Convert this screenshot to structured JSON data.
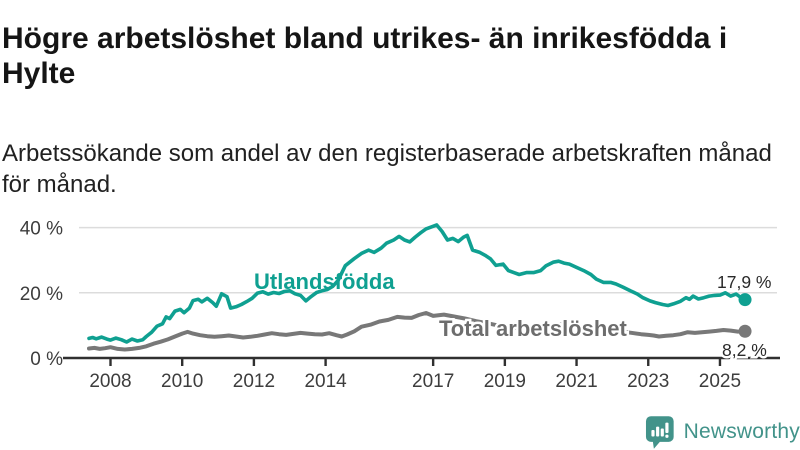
{
  "header": {
    "title": "Högre arbetslöshet bland utrikes- än inrikesfödda i Hylte",
    "subtitle": "Arbetssökande som andel av den registerbaserade arbetskraften månad för månad."
  },
  "chart_data": {
    "type": "line",
    "unit": "%",
    "grid": "horizontal gridlines at 20 and 40",
    "legend_position": "inline labels on lines",
    "xlim": [
      2007.4,
      2025.75
    ],
    "ylim": [
      0,
      44
    ],
    "x_tick_labels": [
      "2008",
      "2010",
      "2012",
      "2014",
      "2017",
      "2019",
      "2021",
      "2023",
      "2025"
    ],
    "x_tick_values": [
      2008,
      2010,
      2012,
      2014,
      2017,
      2019,
      2021,
      2023,
      2025
    ],
    "y_tick_labels": [
      "0 %",
      "20 %",
      "40 %"
    ],
    "y_tick_values": [
      0,
      20,
      40
    ],
    "gridline_values": [
      20,
      40
    ],
    "series": [
      {
        "name": "Utlandsfödda",
        "color": "#0fa091",
        "end_label": "17,9 %",
        "end_value": 17.9,
        "points": [
          [
            2007.4,
            6.0
          ],
          [
            2007.5,
            6.3
          ],
          [
            2007.6,
            5.9
          ],
          [
            2007.75,
            6.4
          ],
          [
            2007.9,
            5.8
          ],
          [
            2008.0,
            5.5
          ],
          [
            2008.15,
            6.1
          ],
          [
            2008.3,
            5.6
          ],
          [
            2008.45,
            4.9
          ],
          [
            2008.6,
            5.8
          ],
          [
            2008.75,
            5.2
          ],
          [
            2008.9,
            5.6
          ],
          [
            2009.0,
            6.6
          ],
          [
            2009.15,
            7.9
          ],
          [
            2009.3,
            9.8
          ],
          [
            2009.45,
            10.5
          ],
          [
            2009.55,
            12.6
          ],
          [
            2009.65,
            12.1
          ],
          [
            2009.8,
            14.4
          ],
          [
            2009.95,
            14.9
          ],
          [
            2010.05,
            13.9
          ],
          [
            2010.2,
            15.3
          ],
          [
            2010.3,
            17.6
          ],
          [
            2010.45,
            18.0
          ],
          [
            2010.55,
            17.2
          ],
          [
            2010.7,
            18.3
          ],
          [
            2010.85,
            17.0
          ],
          [
            2010.95,
            15.9
          ],
          [
            2011.1,
            19.7
          ],
          [
            2011.25,
            18.8
          ],
          [
            2011.35,
            15.3
          ],
          [
            2011.5,
            15.7
          ],
          [
            2011.65,
            16.4
          ],
          [
            2011.8,
            17.3
          ],
          [
            2011.95,
            18.3
          ],
          [
            2012.1,
            19.9
          ],
          [
            2012.25,
            20.3
          ],
          [
            2012.4,
            19.6
          ],
          [
            2012.55,
            20.1
          ],
          [
            2012.7,
            19.8
          ],
          [
            2012.85,
            20.4
          ],
          [
            2013.0,
            20.6
          ],
          [
            2013.15,
            19.7
          ],
          [
            2013.3,
            19.2
          ],
          [
            2013.45,
            17.5
          ],
          [
            2013.6,
            18.9
          ],
          [
            2013.75,
            20.1
          ],
          [
            2013.9,
            20.6
          ],
          [
            2014.05,
            21.0
          ],
          [
            2014.2,
            22.0
          ],
          [
            2014.35,
            23.8
          ],
          [
            2014.55,
            28.3
          ],
          [
            2014.8,
            30.5
          ],
          [
            2015.0,
            32.1
          ],
          [
            2015.2,
            33.1
          ],
          [
            2015.35,
            32.4
          ],
          [
            2015.55,
            33.7
          ],
          [
            2015.7,
            35.2
          ],
          [
            2015.9,
            36.2
          ],
          [
            2016.05,
            37.3
          ],
          [
            2016.2,
            36.2
          ],
          [
            2016.35,
            35.6
          ],
          [
            2016.5,
            37.1
          ],
          [
            2016.65,
            38.4
          ],
          [
            2016.8,
            39.6
          ],
          [
            2016.95,
            40.2
          ],
          [
            2017.1,
            40.8
          ],
          [
            2017.25,
            38.8
          ],
          [
            2017.4,
            36.2
          ],
          [
            2017.55,
            36.7
          ],
          [
            2017.7,
            35.7
          ],
          [
            2017.85,
            37.1
          ],
          [
            2017.95,
            37.6
          ],
          [
            2018.1,
            33.1
          ],
          [
            2018.3,
            32.4
          ],
          [
            2018.45,
            31.5
          ],
          [
            2018.6,
            30.4
          ],
          [
            2018.75,
            28.4
          ],
          [
            2018.95,
            28.8
          ],
          [
            2019.1,
            26.8
          ],
          [
            2019.25,
            26.2
          ],
          [
            2019.4,
            25.6
          ],
          [
            2019.6,
            26.2
          ],
          [
            2019.8,
            26.2
          ],
          [
            2020.0,
            26.8
          ],
          [
            2020.15,
            28.3
          ],
          [
            2020.35,
            29.4
          ],
          [
            2020.5,
            29.7
          ],
          [
            2020.65,
            29.1
          ],
          [
            2020.8,
            28.8
          ],
          [
            2021.0,
            27.8
          ],
          [
            2021.2,
            26.8
          ],
          [
            2021.4,
            25.6
          ],
          [
            2021.55,
            24.2
          ],
          [
            2021.75,
            23.2
          ],
          [
            2021.95,
            23.2
          ],
          [
            2022.1,
            22.7
          ],
          [
            2022.3,
            21.7
          ],
          [
            2022.5,
            20.6
          ],
          [
            2022.7,
            19.6
          ],
          [
            2022.85,
            18.5
          ],
          [
            2023.05,
            17.5
          ],
          [
            2023.2,
            17.0
          ],
          [
            2023.4,
            16.4
          ],
          [
            2023.55,
            16.1
          ],
          [
            2023.7,
            16.6
          ],
          [
            2023.9,
            17.4
          ],
          [
            2024.05,
            18.5
          ],
          [
            2024.15,
            18.0
          ],
          [
            2024.25,
            19.0
          ],
          [
            2024.4,
            18.1
          ],
          [
            2024.55,
            18.5
          ],
          [
            2024.7,
            19.0
          ],
          [
            2024.85,
            19.2
          ],
          [
            2025.0,
            19.3
          ],
          [
            2025.15,
            20.0
          ],
          [
            2025.3,
            19.0
          ],
          [
            2025.45,
            19.6
          ],
          [
            2025.55,
            18.8
          ],
          [
            2025.7,
            17.9
          ]
        ]
      },
      {
        "name": "Total arbetslöshet",
        "color": "#787878",
        "end_label": "8,2 %",
        "end_value": 8.2,
        "points": [
          [
            2007.4,
            2.9
          ],
          [
            2007.55,
            3.1
          ],
          [
            2007.7,
            2.8
          ],
          [
            2007.85,
            3.0
          ],
          [
            2008.0,
            3.3
          ],
          [
            2008.2,
            2.8
          ],
          [
            2008.4,
            2.6
          ],
          [
            2008.6,
            2.8
          ],
          [
            2008.8,
            3.1
          ],
          [
            2009.0,
            3.6
          ],
          [
            2009.2,
            4.4
          ],
          [
            2009.4,
            5.0
          ],
          [
            2009.6,
            5.7
          ],
          [
            2009.8,
            6.6
          ],
          [
            2010.0,
            7.5
          ],
          [
            2010.15,
            8.0
          ],
          [
            2010.3,
            7.5
          ],
          [
            2010.5,
            7.0
          ],
          [
            2010.7,
            6.7
          ],
          [
            2010.9,
            6.5
          ],
          [
            2011.1,
            6.7
          ],
          [
            2011.3,
            6.9
          ],
          [
            2011.5,
            6.6
          ],
          [
            2011.7,
            6.3
          ],
          [
            2011.9,
            6.5
          ],
          [
            2012.1,
            6.8
          ],
          [
            2012.3,
            7.2
          ],
          [
            2012.5,
            7.6
          ],
          [
            2012.7,
            7.3
          ],
          [
            2012.9,
            7.1
          ],
          [
            2013.1,
            7.4
          ],
          [
            2013.3,
            7.7
          ],
          [
            2013.5,
            7.5
          ],
          [
            2013.7,
            7.3
          ],
          [
            2013.9,
            7.2
          ],
          [
            2014.1,
            7.6
          ],
          [
            2014.3,
            7.0
          ],
          [
            2014.45,
            6.6
          ],
          [
            2014.6,
            7.2
          ],
          [
            2014.8,
            8.2
          ],
          [
            2015.0,
            9.6
          ],
          [
            2015.25,
            10.2
          ],
          [
            2015.5,
            11.2
          ],
          [
            2015.75,
            11.7
          ],
          [
            2016.0,
            12.6
          ],
          [
            2016.2,
            12.4
          ],
          [
            2016.4,
            12.3
          ],
          [
            2016.6,
            13.2
          ],
          [
            2016.8,
            13.8
          ],
          [
            2017.0,
            12.9
          ],
          [
            2017.3,
            13.3
          ],
          [
            2017.6,
            12.7
          ],
          [
            2017.9,
            12.1
          ],
          [
            2018.2,
            11.3
          ],
          [
            2018.5,
            10.7
          ],
          [
            2018.8,
            10.0
          ],
          [
            2019.1,
            9.5
          ],
          [
            2019.4,
            9.2
          ],
          [
            2019.7,
            9.0
          ],
          [
            2020.0,
            9.3
          ],
          [
            2020.3,
            10.0
          ],
          [
            2020.6,
            10.4
          ],
          [
            2020.9,
            10.1
          ],
          [
            2021.2,
            9.5
          ],
          [
            2021.5,
            9.0
          ],
          [
            2021.8,
            8.5
          ],
          [
            2022.1,
            8.1
          ],
          [
            2022.4,
            7.9
          ],
          [
            2022.6,
            7.6
          ],
          [
            2022.8,
            7.3
          ],
          [
            2023.0,
            7.1
          ],
          [
            2023.15,
            6.9
          ],
          [
            2023.3,
            6.6
          ],
          [
            2023.5,
            6.8
          ],
          [
            2023.7,
            7.0
          ],
          [
            2023.9,
            7.3
          ],
          [
            2024.1,
            7.9
          ],
          [
            2024.3,
            7.7
          ],
          [
            2024.5,
            7.9
          ],
          [
            2024.7,
            8.1
          ],
          [
            2024.9,
            8.3
          ],
          [
            2025.1,
            8.6
          ],
          [
            2025.3,
            8.4
          ],
          [
            2025.5,
            8.1
          ],
          [
            2025.7,
            8.2
          ]
        ]
      }
    ],
    "colors": {
      "axis": "#303030",
      "tick_label": "#3d3d3d",
      "gridline": "#dcdcdc",
      "value_label": "#2a2a2a",
      "series_teal": "#0fa091",
      "series_gray": "#787878",
      "gray_label": "#6d6d6d"
    }
  },
  "footer": {
    "brand": "Newsworthy",
    "brand_color": "#42938a",
    "logo_icon": "bar-chart-speech-bubble-icon"
  }
}
